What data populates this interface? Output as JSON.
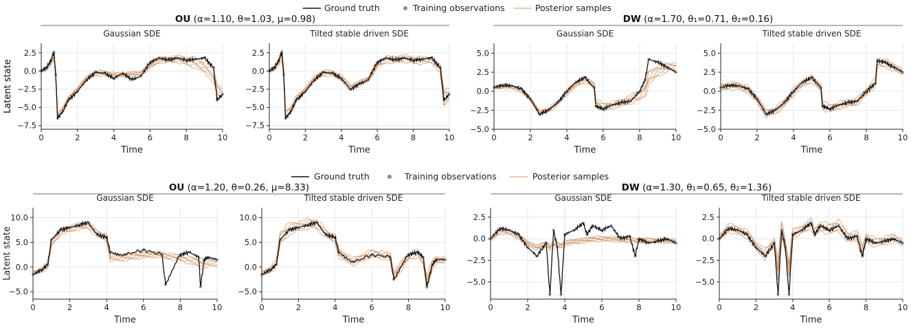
{
  "colors": {
    "ground_truth": "#111111",
    "observations": "#7393b3",
    "posterior": "#c8804a",
    "grid": "#e6e6e6"
  },
  "legend": {
    "ground_truth": "Ground truth",
    "observations": "Training observations",
    "posterior": "Posterior samples"
  },
  "groups": [
    {
      "name": "OU",
      "params": " (α=1.10, θ=1.03, μ=0.98)"
    },
    {
      "name": "DW",
      "params": " (α=1.70, θ₁=0.71, θ₂=0.16)"
    },
    {
      "name": "OU",
      "params": " (α=1.20, θ=0.26, μ=8.33)"
    },
    {
      "name": "DW",
      "params": " (α=1.30, θ₁=0.65, θ₂=1.36)"
    }
  ],
  "chart_data": [
    {
      "type": "line",
      "title": "Gaussian SDE",
      "xlabel": "Time",
      "ylabel": "Latent state",
      "xlim": [
        0,
        10
      ],
      "ylim": [
        -8,
        3.8
      ],
      "xticks": [
        0,
        2,
        4,
        6,
        8,
        10
      ],
      "yticks": [
        2.5,
        0.0,
        -2.5,
        -5.0,
        -7.5
      ],
      "x": [
        0,
        0.3,
        0.5,
        0.7,
        0.8,
        0.9,
        1.2,
        1.5,
        2.0,
        2.5,
        3.0,
        3.5,
        4.0,
        4.5,
        5.0,
        5.5,
        6.0,
        6.5,
        7.0,
        7.5,
        8.0,
        8.5,
        9.0,
        9.5,
        9.7,
        10.0
      ],
      "truth": [
        0,
        0.5,
        1.3,
        2.6,
        -0.5,
        -6.5,
        -5.5,
        -4.0,
        -2.8,
        -1.2,
        -0.2,
        -0.3,
        -1.0,
        -0.3,
        -1.2,
        -0.7,
        1.2,
        1.8,
        1.5,
        1.8,
        1.5,
        1.6,
        1.8,
        0.5,
        -4.0,
        -3.2
      ],
      "posterior": [
        0,
        0.4,
        1.0,
        2.0,
        -0.5,
        -6.2,
        -5.2,
        -3.8,
        -2.5,
        -1.0,
        -0.2,
        -0.3,
        -0.5,
        -0.5,
        -0.4,
        -0.3,
        0.8,
        1.5,
        1.6,
        1.7,
        1.4,
        1.2,
        0.6,
        -0.5,
        -2.5,
        -3.0
      ],
      "band": [
        0.25,
        0.3,
        0.3,
        0.3,
        0.3,
        0.4,
        0.4,
        0.3,
        0.3,
        0.3,
        0.4,
        0.4,
        0.3,
        0.3,
        0.3,
        0.3,
        0.4,
        0.4,
        0.4,
        0.5,
        0.6,
        0.7,
        0.8,
        1.0,
        1.0,
        0.6
      ]
    },
    {
      "type": "line",
      "title": "Tilted stable driven SDE",
      "xlabel": "Time",
      "ylabel": "",
      "xlim": [
        0,
        10
      ],
      "ylim": [
        -8,
        3.8
      ],
      "xticks": [
        0,
        2,
        4,
        6,
        8,
        10
      ],
      "yticks": [
        2.5,
        0.0,
        -2.5,
        -5.0,
        -7.5
      ],
      "x": [
        0,
        0.3,
        0.5,
        0.7,
        0.8,
        0.9,
        1.2,
        1.5,
        2.0,
        2.5,
        3.0,
        3.5,
        4.0,
        4.5,
        5.0,
        5.5,
        6.0,
        6.5,
        7.0,
        7.5,
        8.0,
        8.5,
        9.0,
        9.5,
        9.7,
        10.0
      ],
      "truth": [
        0,
        0.5,
        1.3,
        2.6,
        -0.5,
        -6.5,
        -5.5,
        -4.0,
        -2.8,
        -1.2,
        -0.2,
        -0.3,
        -1.0,
        -2.5,
        -1.8,
        -1.2,
        1.2,
        1.8,
        1.5,
        1.8,
        1.5,
        1.6,
        1.8,
        0.5,
        -4.0,
        -3.2
      ],
      "posterior": [
        0,
        0.5,
        1.2,
        2.3,
        -0.3,
        -6.0,
        -5.3,
        -3.8,
        -2.6,
        -1.1,
        -0.2,
        -0.3,
        -0.9,
        -2.3,
        -1.7,
        -1.1,
        1.0,
        1.6,
        1.6,
        1.8,
        1.5,
        1.5,
        1.6,
        0.4,
        -3.6,
        -3.0
      ],
      "band": [
        0.3,
        0.4,
        0.5,
        0.6,
        0.6,
        0.7,
        0.6,
        0.4,
        0.4,
        0.4,
        0.4,
        0.4,
        0.4,
        0.5,
        0.4,
        0.4,
        0.5,
        0.5,
        0.5,
        0.5,
        0.5,
        0.5,
        0.5,
        0.6,
        1.5,
        0.7
      ]
    },
    {
      "type": "line",
      "title": "Gaussian SDE",
      "xlabel": "Time",
      "ylabel": "Latent state",
      "xlim": [
        0,
        10
      ],
      "ylim": [
        -5,
        6.3
      ],
      "xticks": [
        0,
        2,
        4,
        6,
        8,
        10
      ],
      "yticks": [
        5.0,
        2.5,
        0.0,
        -2.5,
        -5.0
      ],
      "x": [
        0,
        0.5,
        1.0,
        1.5,
        2.0,
        2.5,
        3.0,
        3.5,
        4.0,
        4.5,
        5.0,
        5.5,
        5.6,
        6.0,
        6.5,
        7.0,
        7.5,
        8.0,
        8.3,
        8.5,
        9.0,
        9.5,
        10.0
      ],
      "truth": [
        0.5,
        0.8,
        0.7,
        0.3,
        -1.0,
        -3.0,
        -2.5,
        -1.5,
        0.0,
        1.2,
        1.8,
        0.5,
        -2.0,
        -2.3,
        -1.8,
        -1.5,
        -1.3,
        0.0,
        1.5,
        4.2,
        3.8,
        3.2,
        2.5
      ],
      "posterior": [
        0.5,
        0.7,
        0.6,
        0.2,
        -1.0,
        -2.8,
        -2.4,
        -1.5,
        -0.1,
        1.0,
        1.6,
        0.8,
        -1.5,
        -2.0,
        -1.8,
        -1.5,
        -1.0,
        -0.5,
        0.3,
        1.8,
        2.8,
        3.2,
        3.3
      ],
      "band": [
        0.3,
        0.3,
        0.3,
        0.3,
        0.3,
        0.3,
        0.3,
        0.3,
        0.4,
        0.4,
        0.4,
        0.5,
        0.5,
        0.5,
        0.5,
        0.5,
        0.6,
        0.7,
        0.9,
        1.0,
        0.8,
        0.6,
        0.5
      ]
    },
    {
      "type": "line",
      "title": "Tilted stable driven SDE",
      "xlabel": "Time",
      "ylabel": "",
      "xlim": [
        0,
        10
      ],
      "ylim": [
        -5,
        6.3
      ],
      "xticks": [
        0,
        2,
        4,
        6,
        8,
        10
      ],
      "yticks": [
        5.0,
        2.5,
        0.0,
        -2.5,
        -5.0
      ],
      "x": [
        0,
        0.5,
        1.0,
        1.5,
        2.0,
        2.5,
        3.0,
        3.5,
        4.0,
        4.5,
        5.0,
        5.5,
        5.6,
        6.0,
        6.5,
        7.0,
        7.5,
        8.0,
        8.5,
        8.6,
        9.0,
        9.5,
        10.0
      ],
      "truth": [
        0.5,
        0.8,
        0.7,
        0.3,
        -1.0,
        -3.0,
        -2.5,
        -1.5,
        0.0,
        1.2,
        1.8,
        0.5,
        -2.0,
        -2.3,
        -1.8,
        -1.5,
        -1.3,
        0.0,
        1.0,
        4.0,
        3.8,
        3.2,
        2.5
      ],
      "posterior": [
        0.5,
        0.8,
        0.7,
        0.3,
        -1.0,
        -2.9,
        -2.5,
        -1.5,
        0.0,
        1.1,
        1.7,
        0.5,
        -1.8,
        -2.2,
        -1.8,
        -1.5,
        -1.3,
        0.0,
        1.2,
        3.8,
        3.8,
        3.2,
        2.6
      ],
      "band": [
        0.5,
        0.5,
        0.5,
        0.5,
        0.5,
        0.5,
        0.5,
        0.5,
        0.5,
        0.5,
        0.5,
        0.5,
        0.6,
        0.5,
        0.5,
        0.5,
        0.5,
        0.5,
        0.6,
        0.7,
        0.6,
        0.5,
        0.4
      ]
    },
    {
      "type": "line",
      "title": "Gaussian SDE",
      "xlabel": "Time",
      "ylabel": "Latent state",
      "xlim": [
        0,
        10
      ],
      "ylim": [
        -6.5,
        12
      ],
      "xticks": [
        0,
        2,
        4,
        6,
        8,
        10
      ],
      "yticks": [
        10,
        5,
        0,
        -5
      ],
      "x": [
        0,
        0.5,
        0.8,
        1.0,
        1.5,
        2.0,
        2.5,
        3.0,
        3.5,
        4.0,
        4.2,
        5.0,
        6.0,
        7.0,
        7.2,
        8.0,
        8.5,
        9.0,
        9.1,
        9.3,
        9.5,
        10.0
      ],
      "truth": [
        -1.5,
        -0.5,
        0.5,
        5.5,
        7.5,
        8.0,
        8.5,
        9.0,
        6.5,
        6.0,
        3.0,
        2.5,
        3.5,
        2.5,
        -3.5,
        2.5,
        3.0,
        2.0,
        -4.0,
        1.5,
        2.0,
        1.5
      ],
      "posterior": [
        -1.3,
        -0.5,
        0.3,
        5.0,
        7.2,
        7.8,
        8.3,
        8.5,
        6.8,
        6.0,
        2.0,
        2.0,
        2.5,
        2.6,
        2.3,
        2.0,
        1.5,
        1.0,
        0.8,
        0.8,
        1.0,
        1.0
      ],
      "band": [
        0.5,
        0.5,
        0.6,
        0.8,
        0.7,
        0.7,
        0.7,
        0.7,
        0.7,
        0.7,
        0.8,
        0.7,
        0.6,
        0.6,
        0.6,
        0.7,
        0.8,
        0.9,
        1.0,
        1.0,
        0.9,
        0.8
      ]
    },
    {
      "type": "line",
      "title": "Tilted stable driven SDE",
      "xlabel": "Time",
      "ylabel": "",
      "xlim": [
        0,
        10
      ],
      "ylim": [
        -6.5,
        12
      ],
      "xticks": [
        0,
        2,
        4,
        6,
        8,
        10
      ],
      "yticks": [
        10,
        5,
        0,
        -5
      ],
      "x": [
        0,
        0.5,
        0.8,
        1.0,
        1.5,
        2.0,
        2.5,
        3.0,
        3.5,
        4.0,
        4.2,
        5.0,
        6.0,
        7.0,
        7.2,
        8.0,
        8.5,
        8.8,
        9.0,
        9.3,
        9.5,
        10.0
      ],
      "truth": [
        -1.5,
        -0.5,
        0.5,
        5.5,
        7.5,
        8.0,
        8.5,
        9.0,
        6.5,
        6.0,
        3.0,
        1.0,
        2.5,
        2.0,
        -2.5,
        2.5,
        3.0,
        2.0,
        -4.0,
        0.5,
        1.5,
        1.5
      ],
      "posterior": [
        -1.4,
        -0.4,
        0.8,
        6.0,
        7.8,
        8.3,
        8.8,
        8.8,
        6.8,
        5.8,
        2.8,
        1.2,
        2.8,
        2.2,
        -1.8,
        2.3,
        2.8,
        1.5,
        -3.0,
        0.5,
        1.4,
        1.5
      ],
      "band": [
        0.6,
        0.6,
        0.8,
        1.5,
        1.2,
        1.0,
        1.0,
        1.0,
        0.9,
        0.8,
        1.0,
        0.8,
        0.8,
        0.8,
        1.0,
        0.8,
        0.8,
        1.0,
        1.5,
        1.0,
        0.8,
        0.6
      ]
    },
    {
      "type": "line",
      "title": "Gaussian SDE",
      "xlabel": "Time",
      "ylabel": "",
      "xlim": [
        0,
        10
      ],
      "ylim": [
        -7,
        3.6
      ],
      "xticks": [
        0,
        2,
        4,
        6,
        8,
        10
      ],
      "yticks": [
        2.5,
        0.0,
        -2.5,
        -5.0
      ],
      "x": [
        0,
        0.5,
        1.0,
        1.5,
        2.0,
        2.5,
        3.0,
        3.2,
        3.4,
        3.6,
        3.8,
        4.0,
        4.5,
        5.0,
        5.2,
        5.5,
        6.0,
        6.5,
        7.0,
        7.5,
        7.8,
        8.0,
        8.5,
        9.0,
        9.5,
        10.0
      ],
      "truth": [
        0.0,
        1.2,
        1.0,
        0.5,
        -1.0,
        -2.0,
        -0.5,
        -6.5,
        1.0,
        -1.0,
        -6.5,
        0.5,
        1.0,
        1.8,
        0.5,
        1.5,
        1.0,
        1.5,
        0.0,
        0.3,
        -2.0,
        0.0,
        -0.5,
        -0.3,
        0.0,
        -0.5
      ],
      "posterior": [
        0.0,
        0.9,
        0.8,
        0.3,
        -0.5,
        -1.0,
        -0.5,
        -1.0,
        -0.5,
        -0.6,
        -0.8,
        -0.5,
        -0.3,
        -0.2,
        -0.1,
        0.0,
        0.0,
        0.0,
        -0.1,
        -0.1,
        -0.2,
        -0.2,
        -0.2,
        -0.2,
        -0.2,
        -0.3
      ],
      "band": [
        0.3,
        0.3,
        0.3,
        0.3,
        0.3,
        0.3,
        0.3,
        0.3,
        0.3,
        0.3,
        0.3,
        0.3,
        0.3,
        0.3,
        0.3,
        0.3,
        0.3,
        0.3,
        0.3,
        0.3,
        0.3,
        0.3,
        0.3,
        0.3,
        0.3,
        0.3
      ]
    },
    {
      "type": "line",
      "title": "Tilted stable driven SDE",
      "xlabel": "Time",
      "ylabel": "",
      "xlim": [
        0,
        10
      ],
      "ylim": [
        -7,
        3.6
      ],
      "xticks": [
        0,
        2,
        4,
        6,
        8,
        10
      ],
      "yticks": [
        2.5,
        0.0,
        -2.5,
        -5.0
      ],
      "x": [
        0,
        0.5,
        1.0,
        1.5,
        2.0,
        2.5,
        3.0,
        3.2,
        3.4,
        3.6,
        3.8,
        4.0,
        4.5,
        5.0,
        5.2,
        5.5,
        6.0,
        6.5,
        7.0,
        7.5,
        7.8,
        8.0,
        8.5,
        9.0,
        9.5,
        10.0
      ],
      "truth": [
        0.0,
        1.2,
        1.0,
        0.5,
        -1.0,
        -2.0,
        -0.5,
        -6.5,
        1.0,
        -1.0,
        -6.5,
        0.5,
        1.0,
        1.8,
        0.5,
        1.5,
        1.0,
        1.5,
        0.0,
        0.3,
        -2.0,
        0.0,
        -0.5,
        -0.3,
        0.0,
        -0.5
      ],
      "posterior": [
        0.1,
        1.3,
        1.0,
        0.6,
        -0.8,
        -1.7,
        -0.4,
        -3.5,
        1.2,
        -0.8,
        -3.5,
        0.6,
        1.1,
        1.8,
        0.7,
        1.5,
        1.2,
        1.6,
        0.2,
        0.4,
        -1.5,
        0.1,
        -0.4,
        -0.2,
        0.1,
        -0.4
      ],
      "band": [
        0.4,
        0.5,
        0.5,
        0.5,
        0.5,
        0.6,
        0.6,
        1.0,
        1.0,
        0.8,
        1.0,
        0.6,
        0.5,
        0.6,
        0.6,
        0.6,
        0.6,
        0.7,
        0.6,
        0.6,
        0.8,
        0.6,
        0.5,
        0.5,
        0.5,
        0.4
      ]
    }
  ]
}
